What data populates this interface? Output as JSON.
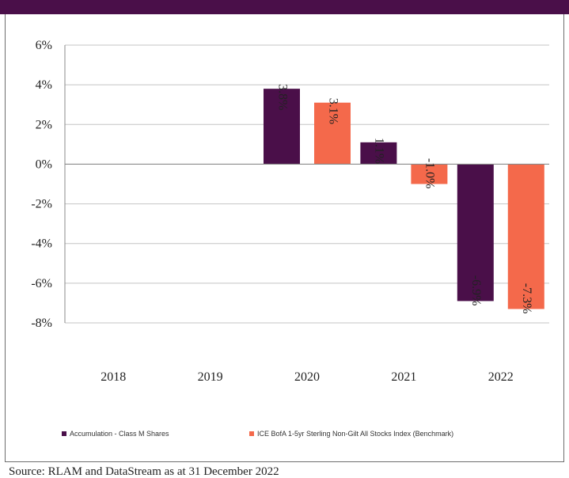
{
  "chart_data": {
    "type": "bar",
    "categories": [
      "2018",
      "2019",
      "2020",
      "2021",
      "2022"
    ],
    "series": [
      {
        "name": "Accumulation - Class M Shares",
        "values": [
          null,
          null,
          3.8,
          1.1,
          -6.9
        ],
        "labels": [
          null,
          null,
          "3.8%",
          "1.1%",
          "-6.9%"
        ]
      },
      {
        "name": "ICE BofA 1-5yr Sterling Non-Gilt All Stocks Index (Benchmark)",
        "values": [
          null,
          null,
          3.1,
          -1.0,
          -7.3
        ],
        "labels": [
          null,
          null,
          "3.1%",
          "-1.0%",
          "-7.3%"
        ]
      }
    ],
    "ylim": [
      -8,
      6
    ],
    "yticks": [
      6,
      4,
      2,
      0,
      -2,
      -4,
      -6,
      -8
    ],
    "ytick_labels": [
      "6%",
      "4%",
      "2%",
      "0%",
      "-2%",
      "-4%",
      "-6%",
      "-8%"
    ],
    "grid": true,
    "legend_position": "bottom",
    "colors": [
      "#4a0f49",
      "#f4694b"
    ]
  },
  "footer": {
    "source": "Source: RLAM and DataStream as at 31 December 2022"
  }
}
